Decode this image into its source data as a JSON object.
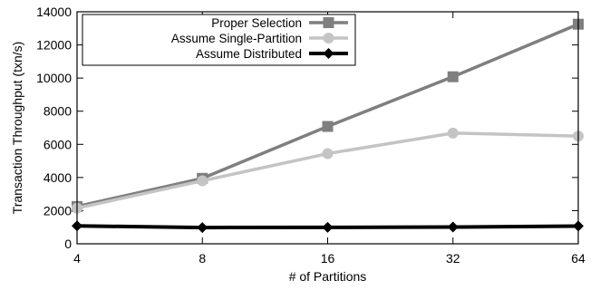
{
  "chart_data": {
    "type": "line",
    "xlabel": "# of Partitions",
    "ylabel": "Transaction Throughput (txn/s)",
    "x": [
      4,
      8,
      16,
      32,
      64
    ],
    "x_scale": "log2",
    "ylim": [
      0,
      14000
    ],
    "yticks": [
      0,
      2000,
      4000,
      6000,
      8000,
      10000,
      12000,
      14000
    ],
    "grid": false,
    "legend_position": "top-left",
    "series": [
      {
        "name": "Proper Selection",
        "marker": "square",
        "color": "#7f7f7f",
        "values": [
          2250,
          3950,
          7080,
          10080,
          13250
        ]
      },
      {
        "name": "Assume Single-Partition",
        "marker": "circle",
        "color": "#c4c4c4",
        "values": [
          2150,
          3800,
          5440,
          6680,
          6500
        ]
      },
      {
        "name": "Assume Distributed",
        "marker": "diamond",
        "color": "#000000",
        "values": [
          1080,
          980,
          990,
          1010,
          1070
        ]
      }
    ]
  }
}
